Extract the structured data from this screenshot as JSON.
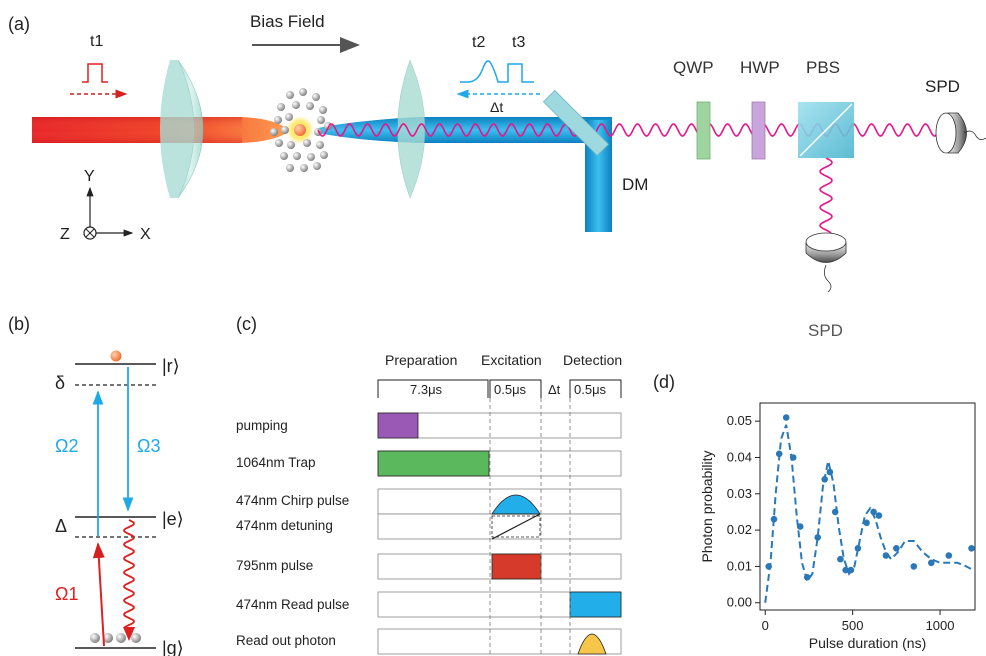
{
  "panel_a": {
    "label": "(a)",
    "t1": "t1",
    "bias_field": "Bias Field",
    "t2": "t2",
    "t3": "t3",
    "delta_t": "Δt",
    "qwp": "QWP",
    "hwp": "HWP",
    "pbs": "PBS",
    "spd_right": "SPD",
    "spd_bottom": "SPD",
    "dm": "DM",
    "axis_y": "Y",
    "axis_z": "Z",
    "axis_x": "X"
  },
  "panel_b": {
    "label": "(b)",
    "delta_small": "δ",
    "delta_big": "Δ",
    "r": "|r⟩",
    "e": "|e⟩",
    "g": "|g⟩",
    "omega1": "Ω1",
    "omega2": "Ω2",
    "omega3": "Ω3"
  },
  "panel_c": {
    "label": "(c)",
    "preparation": "Preparation",
    "excitation": "Excitation",
    "detection": "Detection",
    "prep_duration": "7.3μs",
    "exc_duration": "0.5μs",
    "gap": "Δt",
    "det_duration": "0.5μs",
    "rows": [
      "pumping",
      "1064nm Trap",
      "474nm Chirp pulse",
      "474nm detuning",
      "795nm pulse",
      "474nm Read pulse",
      "Read out photon"
    ]
  },
  "panel_d": {
    "label": "(d)"
  },
  "colors": {
    "red_beam": "#e8262a",
    "blue_beam": "#1fa9e6",
    "wave": "#e8158c",
    "qwp": "#8cc98e",
    "hwp": "#bf8fd0",
    "pumping": "#9b59b6",
    "trap": "#5cb85c",
    "pulse795": "#d63a2a",
    "read_pulse": "#22aee8",
    "photon": "#f5c64a",
    "omega1": "#e02020",
    "omega23": "#1fa9e6"
  },
  "chart_data": {
    "type": "scatter",
    "xlabel": "Pulse duration (ns)",
    "ylabel": "Photon probability",
    "xlim": [
      -30,
      1200
    ],
    "ylim": [
      -0.002,
      0.055
    ],
    "xticks": [
      0,
      500,
      1000
    ],
    "yticks": [
      0.0,
      0.01,
      0.02,
      0.03,
      0.04,
      0.05
    ],
    "xtick_labels": [
      "0",
      "500",
      "1000"
    ],
    "ytick_labels": [
      "0.00",
      "0.01",
      "0.02",
      "0.03",
      "0.04",
      "0.05"
    ],
    "series": [
      {
        "style": "points",
        "x": [
          20,
          50,
          80,
          120,
          160,
          200,
          240,
          300,
          340,
          370,
          400,
          430,
          460,
          490,
          530,
          580,
          620,
          650,
          690,
          750,
          850,
          950,
          1050,
          1180
        ],
        "y": [
          0.01,
          0.023,
          0.041,
          0.051,
          0.04,
          0.021,
          0.007,
          0.018,
          0.034,
          0.036,
          0.025,
          0.012,
          0.009,
          0.009,
          0.015,
          0.022,
          0.025,
          0.024,
          0.013,
          0.015,
          0.01,
          0.011,
          0.013,
          0.015
        ]
      },
      {
        "style": "dashed-fit",
        "x": [
          0,
          30,
          60,
          90,
          120,
          150,
          180,
          210,
          240,
          270,
          300,
          330,
          360,
          390,
          420,
          450,
          480,
          510,
          540,
          570,
          600,
          630,
          660,
          690,
          720,
          760,
          800,
          850,
          900,
          950,
          1000,
          1050,
          1100,
          1150,
          1190
        ],
        "y": [
          0.0,
          0.011,
          0.03,
          0.045,
          0.049,
          0.04,
          0.024,
          0.011,
          0.006,
          0.008,
          0.018,
          0.032,
          0.039,
          0.033,
          0.021,
          0.012,
          0.008,
          0.01,
          0.017,
          0.024,
          0.026,
          0.023,
          0.018,
          0.014,
          0.012,
          0.014,
          0.017,
          0.017,
          0.014,
          0.012,
          0.011,
          0.011,
          0.011,
          0.01,
          0.009
        ]
      }
    ]
  }
}
